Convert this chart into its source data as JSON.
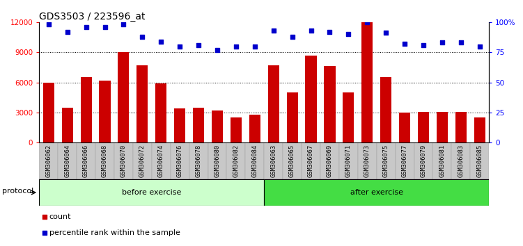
{
  "title": "GDS3503 / 223596_at",
  "categories": [
    "GSM306062",
    "GSM306064",
    "GSM306066",
    "GSM306068",
    "GSM306070",
    "GSM306072",
    "GSM306074",
    "GSM306076",
    "GSM306078",
    "GSM306080",
    "GSM306082",
    "GSM306084",
    "GSM306063",
    "GSM306065",
    "GSM306067",
    "GSM306069",
    "GSM306071",
    "GSM306073",
    "GSM306075",
    "GSM306077",
    "GSM306079",
    "GSM306081",
    "GSM306083",
    "GSM306085"
  ],
  "bar_values": [
    6000,
    3500,
    6500,
    6200,
    9000,
    7700,
    5900,
    3400,
    3500,
    3200,
    2500,
    2800,
    7700,
    5000,
    8700,
    7600,
    5000,
    12000,
    6500,
    3000,
    3100,
    3100,
    3100,
    2500
  ],
  "percentile_values": [
    98,
    92,
    96,
    96,
    98,
    88,
    84,
    80,
    81,
    77,
    80,
    80,
    93,
    88,
    93,
    92,
    90,
    100,
    91,
    82,
    81,
    83,
    83,
    80
  ],
  "before_exercise_count": 12,
  "after_exercise_count": 12,
  "bar_color": "#cc0000",
  "percentile_color": "#0000cc",
  "ylim_left": [
    0,
    12000
  ],
  "ylim_right": [
    0,
    100
  ],
  "yticks_left": [
    0,
    3000,
    6000,
    9000,
    12000
  ],
  "ytick_labels_left": [
    "0",
    "3000",
    "6000",
    "9000",
    "12000"
  ],
  "yticks_right": [
    0,
    25,
    50,
    75,
    100
  ],
  "ytick_labels_right": [
    "0",
    "25",
    "50",
    "75",
    "100%"
  ],
  "before_color": "#ccffcc",
  "after_color": "#44dd44",
  "protocol_label": "protocol",
  "before_label": "before exercise",
  "after_label": "after exercise",
  "legend_count_label": "count",
  "legend_percentile_label": "percentile rank within the sample",
  "background_color": "#ffffff",
  "grid_color": "#000000",
  "title_fontsize": 10,
  "bar_width": 0.6
}
